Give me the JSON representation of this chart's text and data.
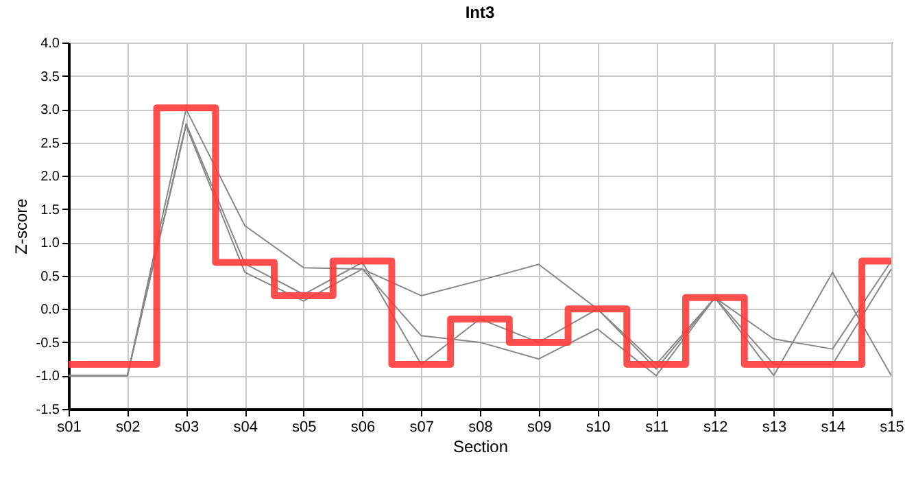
{
  "chart_data": {
    "type": "line",
    "title": "Int3",
    "xlabel": "Section",
    "ylabel": "Z-score",
    "categories": [
      "s01",
      "s02",
      "s03",
      "s04",
      "s05",
      "s06",
      "s07",
      "s08",
      "s09",
      "s10",
      "s11",
      "s12",
      "s13",
      "s14",
      "s15"
    ],
    "series": [
      {
        "color": "#888888",
        "type": "line",
        "values": [
          -1.0,
          -1.0,
          3.0,
          1.25,
          0.62,
          0.6,
          0.2,
          0.43,
          0.67,
          0.0,
          -0.83,
          0.17,
          -0.45,
          -0.6,
          0.72
        ]
      },
      {
        "color": "#888888",
        "type": "line",
        "values": [
          -1.0,
          -1.0,
          2.78,
          0.68,
          0.22,
          0.7,
          -0.83,
          -0.15,
          -0.5,
          0.0,
          -0.9,
          0.17,
          -0.83,
          -0.83,
          0.6
        ]
      },
      {
        "color": "#888888",
        "type": "line",
        "values": [
          -1.0,
          -1.0,
          2.75,
          0.55,
          0.12,
          0.6,
          -0.4,
          -0.5,
          -0.75,
          -0.3,
          -1.0,
          0.17,
          -1.0,
          0.55,
          -1.0
        ]
      },
      {
        "color": "#ff3b3b",
        "type": "step",
        "values": [
          -0.83,
          -0.83,
          3.02,
          0.7,
          0.2,
          0.72,
          -0.83,
          -0.15,
          -0.5,
          0.0,
          -0.83,
          0.17,
          -0.83,
          -0.83,
          0.72
        ]
      }
    ],
    "ylim": [
      -1.5,
      4.0
    ],
    "yticks": [
      {
        "value": -1.5,
        "label": "-1.5"
      },
      {
        "value": -1.0,
        "label": "-1.0"
      },
      {
        "value": -0.5,
        "label": "-0.5"
      },
      {
        "value": 0,
        "label": "0.0"
      },
      {
        "value": 0.5,
        "label": "0.5"
      },
      {
        "value": 1.0,
        "label": "1.0"
      },
      {
        "value": 1.5,
        "label": "1.5"
      },
      {
        "value": 2.0,
        "label": "2.0"
      },
      {
        "value": 2.5,
        "label": "2.5"
      },
      {
        "value": 3.0,
        "label": "3.0"
      },
      {
        "value": 3.5,
        "label": "3.5"
      },
      {
        "value": 4.0,
        "label": "4.0"
      }
    ],
    "grid": true,
    "marker": "none",
    "line_style": "solid"
  }
}
